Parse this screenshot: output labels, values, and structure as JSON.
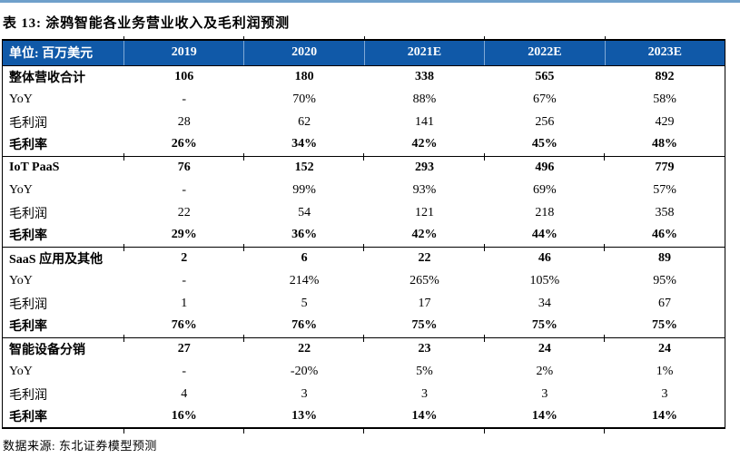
{
  "page": {
    "title": "表 13: 涂鸦智能各业务营业收入及毛利润预测",
    "source": "数据来源: 东北证券模型预测"
  },
  "colors": {
    "top_rule": "#6FA0CB",
    "header_bg": "#1059A8",
    "header_text": "#FFFFFF",
    "border": "#000000"
  },
  "table": {
    "unit_label": "单位: 百万美元",
    "columns": [
      "2019",
      "2020",
      "2021E",
      "2022E",
      "2023E"
    ],
    "sections": [
      {
        "name": "整体营收合计",
        "rows": [
          {
            "label": "整体营收合计",
            "bold": true,
            "values": [
              "106",
              "180",
              "338",
              "565",
              "892"
            ]
          },
          {
            "label": "YoY",
            "bold": false,
            "values": [
              "-",
              "70%",
              "88%",
              "67%",
              "58%"
            ]
          },
          {
            "label": "毛利润",
            "bold": false,
            "values": [
              "28",
              "62",
              "141",
              "256",
              "429"
            ]
          },
          {
            "label": "毛利率",
            "bold": true,
            "values": [
              "26%",
              "34%",
              "42%",
              "45%",
              "48%"
            ]
          }
        ]
      },
      {
        "name": "IoT PaaS",
        "rows": [
          {
            "label": "IoT PaaS",
            "bold": true,
            "values": [
              "76",
              "152",
              "293",
              "496",
              "779"
            ]
          },
          {
            "label": "YoY",
            "bold": false,
            "values": [
              "-",
              "99%",
              "93%",
              "69%",
              "57%"
            ]
          },
          {
            "label": "毛利润",
            "bold": false,
            "values": [
              "22",
              "54",
              "121",
              "218",
              "358"
            ]
          },
          {
            "label": "毛利率",
            "bold": true,
            "values": [
              "29%",
              "36%",
              "42%",
              "44%",
              "46%"
            ]
          }
        ]
      },
      {
        "name": "SaaS 应用及其他",
        "rows": [
          {
            "label": "SaaS 应用及其他",
            "bold": true,
            "values": [
              "2",
              "6",
              "22",
              "46",
              "89"
            ]
          },
          {
            "label": "YoY",
            "bold": false,
            "values": [
              "-",
              "214%",
              "265%",
              "105%",
              "95%"
            ]
          },
          {
            "label": "毛利润",
            "bold": false,
            "values": [
              "1",
              "5",
              "17",
              "34",
              "67"
            ]
          },
          {
            "label": "毛利率",
            "bold": true,
            "values": [
              "76%",
              "76%",
              "75%",
              "75%",
              "75%"
            ]
          }
        ]
      },
      {
        "name": "智能设备分销",
        "rows": [
          {
            "label": "智能设备分销",
            "bold": true,
            "values": [
              "27",
              "22",
              "23",
              "24",
              "24"
            ]
          },
          {
            "label": "YoY",
            "bold": false,
            "values": [
              "-",
              "-20%",
              "5%",
              "2%",
              "1%"
            ]
          },
          {
            "label": "毛利润",
            "bold": false,
            "values": [
              "4",
              "3",
              "3",
              "3",
              "3"
            ]
          },
          {
            "label": "毛利率",
            "bold": true,
            "values": [
              "16%",
              "13%",
              "14%",
              "14%",
              "14%"
            ]
          }
        ]
      }
    ]
  }
}
